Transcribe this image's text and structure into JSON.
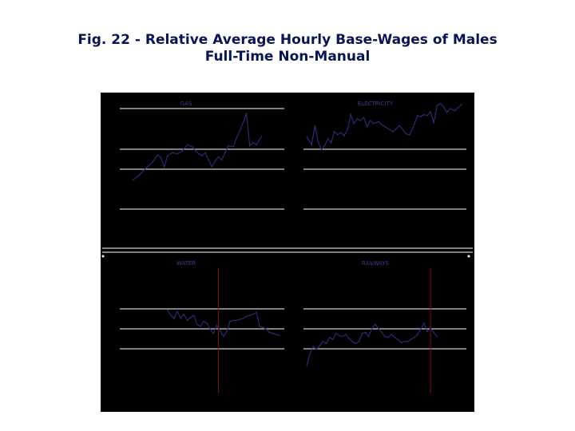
{
  "figure": {
    "title_line1": "Fig. 22 - Relative Average Hourly Base-Wages of Males",
    "title_line2": "Full-Time Non-Manual"
  },
  "colors": {
    "background": "#000000",
    "series": "#2a2f7a",
    "gridline": "#ffffff",
    "label": "#3a3f8a",
    "marker_line": "#7a1418",
    "title": "#0a1450"
  },
  "chart_data": [
    {
      "type": "line",
      "title": "GAS",
      "x_range": [
        0,
        1
      ],
      "y_range": [
        0,
        1
      ],
      "grid": true,
      "values": [
        [
          0.08,
          0.29
        ],
        [
          0.12,
          0.34
        ],
        [
          0.16,
          0.41
        ],
        [
          0.2,
          0.47
        ],
        [
          0.23,
          0.54
        ],
        [
          0.25,
          0.51
        ],
        [
          0.27,
          0.42
        ],
        [
          0.29,
          0.53
        ],
        [
          0.32,
          0.56
        ],
        [
          0.35,
          0.55
        ],
        [
          0.38,
          0.58
        ],
        [
          0.41,
          0.64
        ],
        [
          0.44,
          0.62
        ],
        [
          0.46,
          0.58
        ],
        [
          0.48,
          0.55
        ],
        [
          0.5,
          0.53
        ],
        [
          0.52,
          0.56
        ],
        [
          0.54,
          0.49
        ],
        [
          0.56,
          0.42
        ],
        [
          0.58,
          0.48
        ],
        [
          0.6,
          0.52
        ],
        [
          0.62,
          0.49
        ],
        [
          0.64,
          0.56
        ],
        [
          0.66,
          0.63
        ],
        [
          0.69,
          0.62
        ],
        [
          0.71,
          0.71
        ],
        [
          0.73,
          0.78
        ],
        [
          0.75,
          0.86
        ],
        [
          0.77,
          0.95
        ],
        [
          0.79,
          0.63
        ],
        [
          0.81,
          0.66
        ],
        [
          0.83,
          0.64
        ],
        [
          0.86,
          0.72
        ]
      ]
    },
    {
      "type": "line",
      "title": "ELECTRICITY",
      "x_range": [
        0,
        1
      ],
      "y_range": [
        0,
        1
      ],
      "grid": true,
      "values": [
        [
          0.02,
          0.72
        ],
        [
          0.05,
          0.64
        ],
        [
          0.07,
          0.83
        ],
        [
          0.09,
          0.67
        ],
        [
          0.11,
          0.59
        ],
        [
          0.13,
          0.63
        ],
        [
          0.15,
          0.7
        ],
        [
          0.17,
          0.66
        ],
        [
          0.19,
          0.77
        ],
        [
          0.21,
          0.74
        ],
        [
          0.23,
          0.76
        ],
        [
          0.25,
          0.73
        ],
        [
          0.27,
          0.79
        ],
        [
          0.29,
          0.94
        ],
        [
          0.31,
          0.85
        ],
        [
          0.33,
          0.9
        ],
        [
          0.35,
          0.88
        ],
        [
          0.37,
          0.91
        ],
        [
          0.39,
          0.82
        ],
        [
          0.41,
          0.88
        ],
        [
          0.43,
          0.85
        ],
        [
          0.46,
          0.87
        ],
        [
          0.48,
          0.84
        ],
        [
          0.5,
          0.82
        ],
        [
          0.52,
          0.8
        ],
        [
          0.55,
          0.77
        ],
        [
          0.57,
          0.8
        ],
        [
          0.59,
          0.83
        ],
        [
          0.61,
          0.79
        ],
        [
          0.63,
          0.75
        ],
        [
          0.65,
          0.74
        ],
        [
          0.67,
          0.8
        ],
        [
          0.7,
          0.93
        ],
        [
          0.72,
          0.92
        ],
        [
          0.74,
          0.94
        ],
        [
          0.76,
          0.93
        ],
        [
          0.78,
          0.97
        ],
        [
          0.8,
          0.86
        ],
        [
          0.82,
          1.03
        ],
        [
          0.84,
          1.05
        ],
        [
          0.86,
          1.02
        ],
        [
          0.88,
          0.96
        ],
        [
          0.9,
          1.0
        ],
        [
          0.93,
          0.98
        ],
        [
          0.95,
          1.01
        ],
        [
          0.97,
          1.04
        ]
      ]
    },
    {
      "type": "line",
      "title": "WATER",
      "x_range": [
        0,
        1
      ],
      "y_range": [
        0,
        1
      ],
      "grid": true,
      "marker_x": 0.6,
      "values": [
        [
          0.29,
          0.74
        ],
        [
          0.31,
          0.69
        ],
        [
          0.33,
          0.66
        ],
        [
          0.35,
          0.73
        ],
        [
          0.37,
          0.66
        ],
        [
          0.39,
          0.7
        ],
        [
          0.41,
          0.64
        ],
        [
          0.43,
          0.67
        ],
        [
          0.45,
          0.69
        ],
        [
          0.47,
          0.6
        ],
        [
          0.49,
          0.58
        ],
        [
          0.51,
          0.63
        ],
        [
          0.53,
          0.61
        ],
        [
          0.55,
          0.55
        ],
        [
          0.57,
          0.51
        ],
        [
          0.59,
          0.59
        ],
        [
          0.61,
          0.54
        ],
        [
          0.63,
          0.48
        ],
        [
          0.65,
          0.53
        ],
        [
          0.67,
          0.63
        ],
        [
          0.69,
          0.64
        ],
        [
          0.71,
          0.64
        ],
        [
          0.73,
          0.65
        ],
        [
          0.75,
          0.66
        ],
        [
          0.77,
          0.68
        ],
        [
          0.79,
          0.69
        ],
        [
          0.81,
          0.7
        ],
        [
          0.83,
          0.72
        ],
        [
          0.85,
          0.58
        ],
        [
          0.87,
          0.57
        ],
        [
          0.89,
          0.55
        ],
        [
          0.91,
          0.52
        ],
        [
          0.93,
          0.51
        ],
        [
          0.95,
          0.5
        ],
        [
          0.97,
          0.49
        ]
      ]
    },
    {
      "type": "line",
      "title": "RAILWAYS",
      "x_range": [
        0,
        1
      ],
      "y_range": [
        0,
        1
      ],
      "grid": true,
      "marker_x": 0.78,
      "values": [
        [
          0.02,
          0.19
        ],
        [
          0.04,
          0.31
        ],
        [
          0.06,
          0.38
        ],
        [
          0.08,
          0.35
        ],
        [
          0.1,
          0.39
        ],
        [
          0.12,
          0.43
        ],
        [
          0.14,
          0.41
        ],
        [
          0.16,
          0.47
        ],
        [
          0.18,
          0.45
        ],
        [
          0.2,
          0.51
        ],
        [
          0.22,
          0.49
        ],
        [
          0.24,
          0.48
        ],
        [
          0.26,
          0.5
        ],
        [
          0.28,
          0.46
        ],
        [
          0.3,
          0.43
        ],
        [
          0.32,
          0.41
        ],
        [
          0.34,
          0.43
        ],
        [
          0.36,
          0.51
        ],
        [
          0.38,
          0.52
        ],
        [
          0.4,
          0.48
        ],
        [
          0.42,
          0.56
        ],
        [
          0.44,
          0.6
        ],
        [
          0.46,
          0.56
        ],
        [
          0.48,
          0.52
        ],
        [
          0.5,
          0.48
        ],
        [
          0.52,
          0.47
        ],
        [
          0.54,
          0.5
        ],
        [
          0.56,
          0.47
        ],
        [
          0.58,
          0.45
        ],
        [
          0.6,
          0.42
        ],
        [
          0.62,
          0.43
        ],
        [
          0.64,
          0.43
        ],
        [
          0.66,
          0.45
        ],
        [
          0.68,
          0.47
        ],
        [
          0.7,
          0.5
        ],
        [
          0.72,
          0.55
        ],
        [
          0.74,
          0.61
        ],
        [
          0.76,
          0.53
        ],
        [
          0.78,
          0.56
        ],
        [
          0.8,
          0.52
        ],
        [
          0.82,
          0.48
        ]
      ]
    }
  ]
}
